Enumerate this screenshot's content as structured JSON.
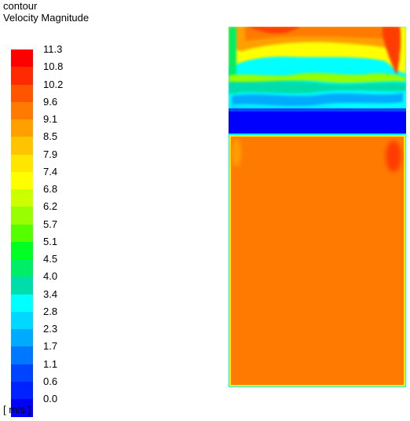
{
  "header": {
    "line1": "contour",
    "line2": "Velocity Magnitude"
  },
  "legend": {
    "unit": "[ m/s ]",
    "ticks": [
      "11.3",
      "10.8",
      "10.2",
      "9.6",
      "9.1",
      "8.5",
      "7.9",
      "7.4",
      "6.8",
      "6.2",
      "5.7",
      "5.1",
      "4.5",
      "4.0",
      "3.4",
      "2.8",
      "2.3",
      "1.7",
      "1.1",
      "0.6",
      "0.0"
    ],
    "colors": [
      "#ff0000",
      "#ff2a00",
      "#ff5500",
      "#ff7a00",
      "#ff9f00",
      "#ffc400",
      "#ffe600",
      "#ffff00",
      "#ccff00",
      "#99ff00",
      "#55ff00",
      "#00ff22",
      "#00ee66",
      "#00ddaa",
      "#00ffff",
      "#00d8ff",
      "#00aaff",
      "#0077ff",
      "#0044ff",
      "#0022ff",
      "#0000ff"
    ]
  },
  "chart_data": {
    "type": "heatmap",
    "title": "Velocity Magnitude",
    "colorbar_unit": "[ m/s ]",
    "colorbar_range": [
      0.0,
      11.3
    ],
    "colorbar_ticks": [
      11.3,
      10.8,
      10.2,
      9.6,
      9.1,
      8.5,
      7.9,
      7.4,
      6.8,
      6.2,
      5.7,
      5.1,
      4.5,
      4.0,
      3.4,
      2.8,
      2.3,
      1.7,
      1.1,
      0.6,
      0.0
    ],
    "regions": [
      {
        "region": "top strip",
        "approx_velocity": 10.2
      },
      {
        "region": "jet band",
        "approx_velocity": 7.4
      },
      {
        "region": "gap band",
        "approx_velocity": 0.0
      },
      {
        "region": "lower chamber",
        "approx_velocity": 9.6
      }
    ]
  }
}
